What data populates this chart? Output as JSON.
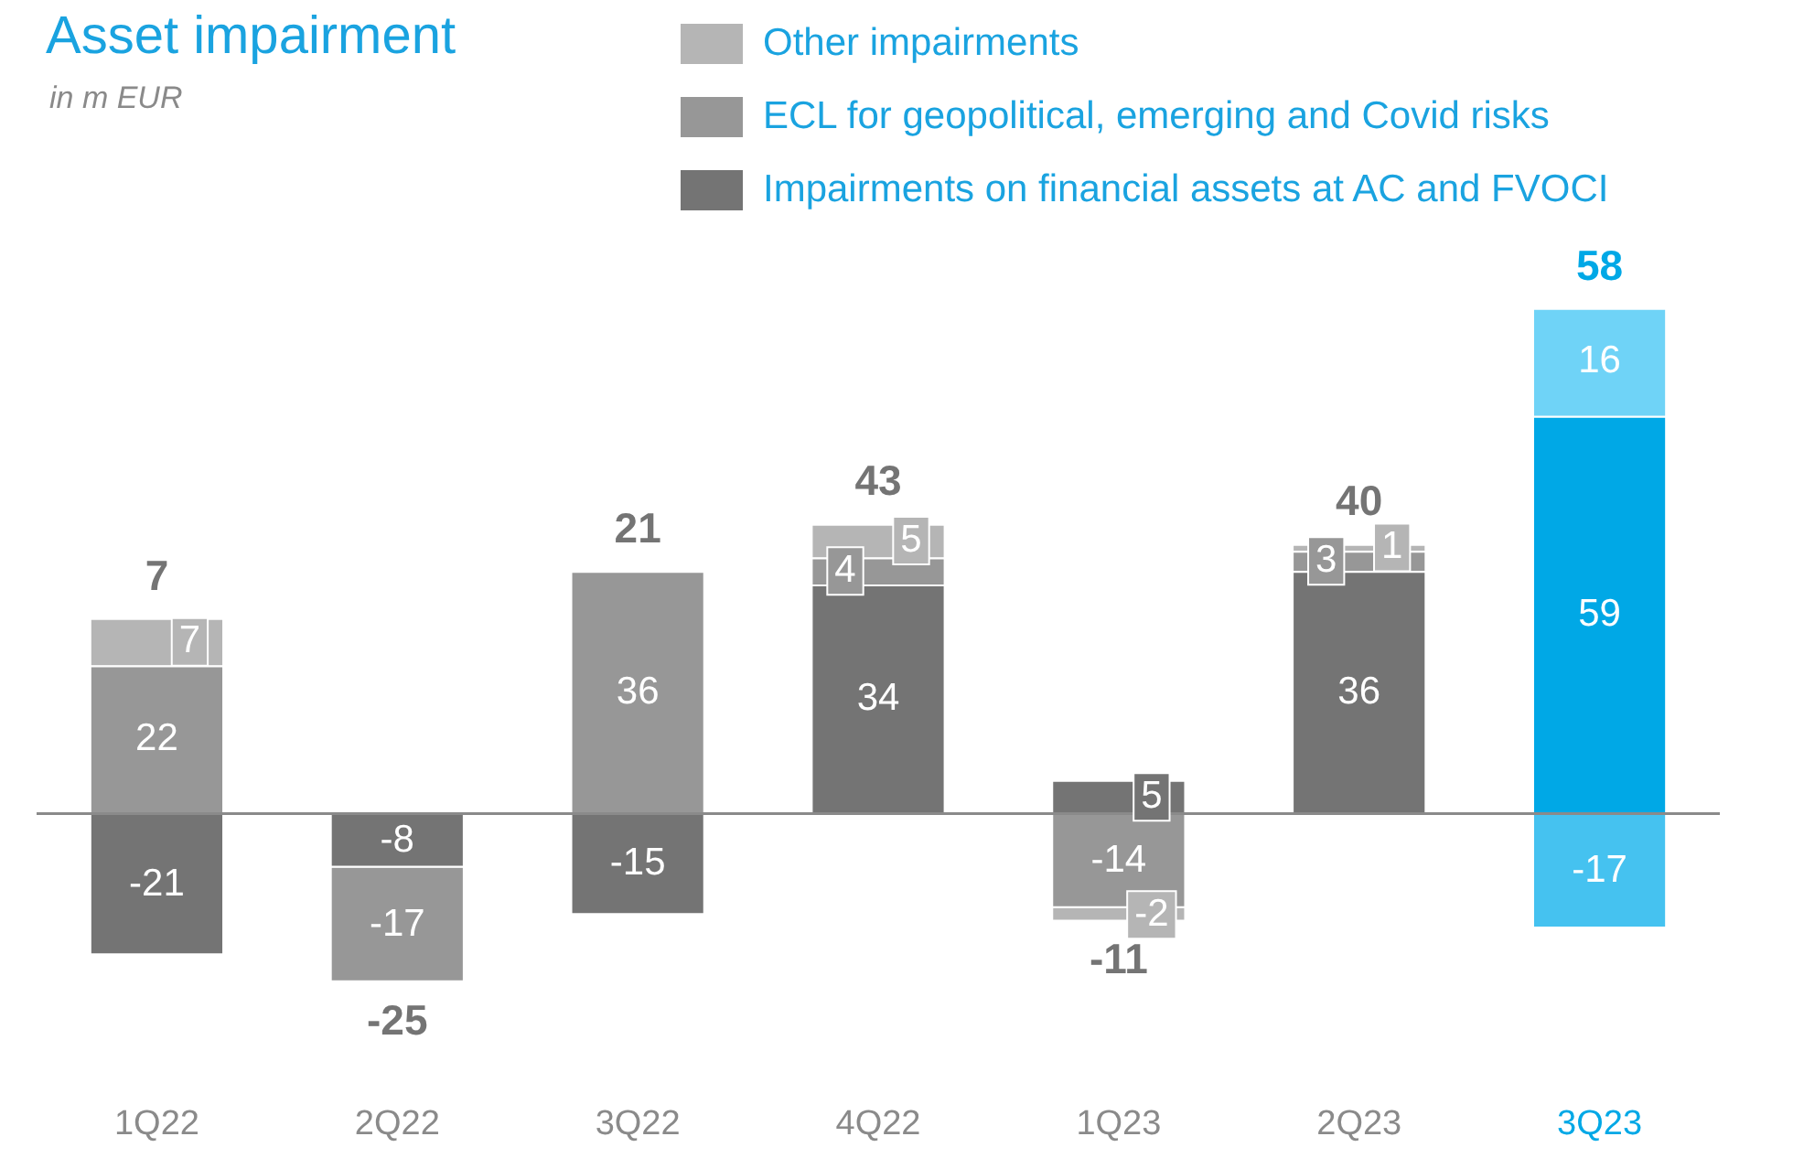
{
  "chart_data": {
    "type": "bar",
    "title": "Asset impairment",
    "subtitle": "in m EUR",
    "categories": [
      "1Q22",
      "2Q22",
      "3Q22",
      "4Q22",
      "1Q23",
      "2Q23",
      "3Q23"
    ],
    "series": [
      {
        "name": "Impairments on financial assets at AC and FVOCI",
        "color": "#747474",
        "colors": [
          "#747474",
          "#747474",
          "#747474",
          "#747474",
          "#747474",
          "#747474",
          "#00a8e6"
        ],
        "values": [
          -21,
          -8,
          -15,
          34,
          5,
          36,
          59
        ]
      },
      {
        "name": "ECL for geopolitical, emerging and Covid risks",
        "color": "#979797",
        "colors": [
          "#979797",
          "#979797",
          "#979797",
          "#979797",
          "#979797",
          "#979797",
          "#45c2f0"
        ],
        "values": [
          22,
          -17,
          36,
          4,
          -14,
          3,
          -17
        ]
      },
      {
        "name": "Other impairments",
        "color": "#b5b5b5",
        "colors": [
          "#b5b5b5",
          "#b5b5b5",
          "#b5b5b5",
          "#b5b5b5",
          "#b5b5b5",
          "#b5b5b5",
          "#6fd3f7"
        ],
        "values": [
          7,
          null,
          null,
          5,
          -2,
          1,
          16
        ]
      }
    ],
    "stacked": true,
    "data_labels": true,
    "totals": [
      "7",
      "-25",
      "21",
      "43",
      "-11",
      "40",
      "58"
    ],
    "tick_labels": "x",
    "grid": false,
    "legend": "top"
  }
}
